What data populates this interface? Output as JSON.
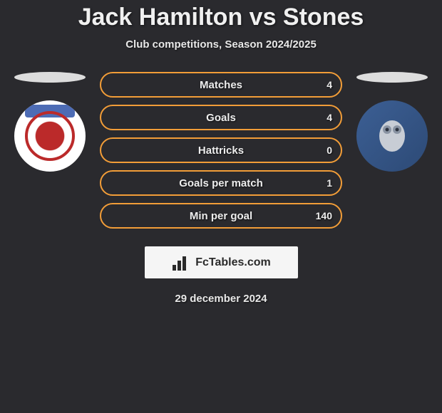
{
  "title": "Jack Hamilton vs Stones",
  "subtitle": "Club competitions, Season 2024/2025",
  "date": "29 december 2024",
  "brand": {
    "name": "FcTables.com"
  },
  "colors": {
    "background": "#2a2a2e",
    "bar_border": "#f29d38",
    "text": "#ededed",
    "fill_left": "#4d6cb5",
    "fill_right": "#f29d38"
  },
  "stats": [
    {
      "label": "Matches",
      "left_value": "",
      "right_value": "4",
      "left_pct": 0,
      "right_pct": 0
    },
    {
      "label": "Goals",
      "left_value": "",
      "right_value": "4",
      "left_pct": 0,
      "right_pct": 0
    },
    {
      "label": "Hattricks",
      "left_value": "",
      "right_value": "0",
      "left_pct": 0,
      "right_pct": 0
    },
    {
      "label": "Goals per match",
      "left_value": "",
      "right_value": "1",
      "left_pct": 0,
      "right_pct": 0
    },
    {
      "label": "Min per goal",
      "left_value": "",
      "right_value": "140",
      "left_pct": 0,
      "right_pct": 0
    }
  ],
  "players": {
    "left": {
      "name": "Jack Hamilton",
      "crest_primary": "#bb2a2a",
      "crest_secondary": "#4d6cb5",
      "crest_bg": "#ffffff"
    },
    "right": {
      "name": "Stones",
      "crest_primary": "#3c5f94",
      "crest_secondary": "#2d4a76",
      "crest_bg": "#3c5f94"
    }
  }
}
